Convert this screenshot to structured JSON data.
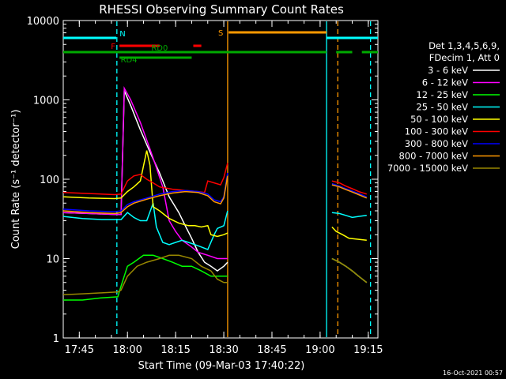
{
  "chart_data": {
    "type": "line",
    "title": "RHESSI Observing Summary Count Rates",
    "xlabel": "Start Time (09-Mar-03 17:40:22)",
    "ylabel": "Count Rate (s⁻¹ detector⁻¹)",
    "yscale": "log",
    "ylim": [
      1,
      10000
    ],
    "xlim_minutes": [
      0,
      98
    ],
    "x_tick_labels": [
      "17:45",
      "18:00",
      "18:15",
      "18:30",
      "18:45",
      "19:00",
      "19:15"
    ],
    "x_tick_minutes": [
      5,
      20,
      35,
      50,
      65,
      80,
      95
    ],
    "y_tick_labels": [
      "1",
      "10",
      "100",
      "1000",
      "10000"
    ],
    "y_tick_values": [
      1,
      10,
      100,
      1000,
      10000
    ],
    "legend_header": [
      "Det 1,3,4,5,6,9,",
      "FDecim 1, Att 0"
    ],
    "footer_date": "16-Oct-2021 00:57",
    "gaps_minutes": [
      [
        51.2,
        83.7
      ],
      [
        94.5,
        94.9
      ]
    ],
    "series": [
      {
        "name": "3 - 6 keV",
        "color": "#ffffff",
        "points": [
          [
            0,
            38
          ],
          [
            8,
            37
          ],
          [
            16,
            36
          ],
          [
            18,
            36
          ],
          [
            19,
            1300
          ],
          [
            21,
            850
          ],
          [
            24,
            420
          ],
          [
            27,
            220
          ],
          [
            30,
            120
          ],
          [
            33,
            60
          ],
          [
            36,
            38
          ],
          [
            38,
            26
          ],
          [
            40,
            18
          ],
          [
            42,
            12
          ],
          [
            44,
            9
          ],
          [
            46,
            8
          ],
          [
            48,
            7
          ],
          [
            50,
            8
          ],
          [
            51.2,
            9
          ],
          [
            83.7,
            10
          ],
          [
            86,
            9
          ],
          [
            88,
            8
          ],
          [
            90,
            7
          ],
          [
            92,
            6
          ],
          [
            94.5,
            5
          ]
        ]
      },
      {
        "name": "6 - 12 keV",
        "color": "#ff00ff",
        "points": [
          [
            0,
            38
          ],
          [
            8,
            37
          ],
          [
            16,
            36
          ],
          [
            18,
            36
          ],
          [
            19,
            1400
          ],
          [
            21,
            1000
          ],
          [
            24,
            520
          ],
          [
            27,
            240
          ],
          [
            29,
            140
          ],
          [
            31,
            80
          ],
          [
            33,
            30
          ],
          [
            35,
            22
          ],
          [
            37,
            17
          ],
          [
            40,
            14
          ],
          [
            42,
            12
          ],
          [
            45,
            11
          ],
          [
            48,
            10
          ],
          [
            50,
            10
          ],
          [
            51.2,
            10
          ],
          [
            83.7,
            10
          ],
          [
            86,
            9
          ],
          [
            88,
            8
          ],
          [
            90,
            7
          ],
          [
            92,
            6
          ],
          [
            94.5,
            5
          ]
        ]
      },
      {
        "name": "12 - 25 keV",
        "color": "#00ff00",
        "points": [
          [
            0,
            3
          ],
          [
            6,
            3
          ],
          [
            12,
            3.2
          ],
          [
            17,
            3.3
          ],
          [
            18,
            4.5
          ],
          [
            20,
            8
          ],
          [
            22,
            9
          ],
          [
            25,
            11
          ],
          [
            28,
            11
          ],
          [
            31,
            10
          ],
          [
            34,
            9
          ],
          [
            37,
            8
          ],
          [
            40,
            8
          ],
          [
            43,
            7
          ],
          [
            46,
            6
          ],
          [
            48,
            6
          ],
          [
            51.2,
            6
          ],
          [
            83.7,
            10
          ],
          [
            86,
            9
          ],
          [
            88,
            8
          ],
          [
            90,
            7
          ],
          [
            92,
            6
          ],
          [
            94.5,
            5
          ]
        ]
      },
      {
        "name": "25 - 50 keV",
        "color": "#00ffff",
        "points": [
          [
            0,
            34
          ],
          [
            6,
            32
          ],
          [
            12,
            31
          ],
          [
            18,
            31
          ],
          [
            20,
            38
          ],
          [
            22,
            33
          ],
          [
            24,
            30
          ],
          [
            26,
            30
          ],
          [
            28,
            50
          ],
          [
            29,
            25
          ],
          [
            31,
            16
          ],
          [
            33,
            15
          ],
          [
            35,
            16
          ],
          [
            37,
            17
          ],
          [
            39,
            16
          ],
          [
            41,
            15
          ],
          [
            43,
            14
          ],
          [
            45,
            13
          ],
          [
            47,
            20
          ],
          [
            48,
            24
          ],
          [
            50,
            26
          ],
          [
            51.2,
            40
          ],
          [
            83.7,
            38
          ],
          [
            86,
            37
          ],
          [
            88,
            35
          ],
          [
            90,
            33
          ],
          [
            92,
            34
          ],
          [
            94.5,
            35
          ]
        ]
      },
      {
        "name": "50 - 100 keV",
        "color": "#ffff00",
        "points": [
          [
            0,
            60
          ],
          [
            8,
            58
          ],
          [
            16,
            57
          ],
          [
            18,
            58
          ],
          [
            20,
            70
          ],
          [
            22,
            80
          ],
          [
            24,
            95
          ],
          [
            26,
            230
          ],
          [
            27,
            150
          ],
          [
            28,
            45
          ],
          [
            30,
            40
          ],
          [
            33,
            32
          ],
          [
            36,
            28
          ],
          [
            39,
            26
          ],
          [
            41,
            26
          ],
          [
            43,
            25
          ],
          [
            45,
            26
          ],
          [
            46,
            20
          ],
          [
            48,
            19
          ],
          [
            50,
            20
          ],
          [
            51.2,
            21
          ],
          [
            83.7,
            25
          ],
          [
            85,
            22
          ],
          [
            87,
            20
          ],
          [
            89,
            18
          ],
          [
            94.5,
            17
          ]
        ]
      },
      {
        "name": "100 - 300 keV",
        "color": "#ff0000",
        "points": [
          [
            0,
            68
          ],
          [
            8,
            66
          ],
          [
            16,
            64
          ],
          [
            18,
            65
          ],
          [
            20,
            95
          ],
          [
            22,
            110
          ],
          [
            24,
            115
          ],
          [
            26,
            100
          ],
          [
            28,
            90
          ],
          [
            30,
            80
          ],
          [
            34,
            75
          ],
          [
            38,
            72
          ],
          [
            42,
            70
          ],
          [
            44,
            68
          ],
          [
            45,
            95
          ],
          [
            47,
            90
          ],
          [
            49,
            85
          ],
          [
            50,
            105
          ],
          [
            51.2,
            160
          ],
          [
            83.7,
            95
          ],
          [
            86,
            90
          ],
          [
            88,
            82
          ],
          [
            90,
            76
          ],
          [
            92,
            70
          ],
          [
            94.5,
            65
          ]
        ]
      },
      {
        "name": "300 - 800 keV",
        "color": "#0000ff",
        "points": [
          [
            0,
            42
          ],
          [
            8,
            40
          ],
          [
            16,
            39
          ],
          [
            18,
            40
          ],
          [
            20,
            48
          ],
          [
            22,
            52
          ],
          [
            26,
            58
          ],
          [
            30,
            65
          ],
          [
            34,
            70
          ],
          [
            38,
            72
          ],
          [
            42,
            70
          ],
          [
            45,
            65
          ],
          [
            47,
            55
          ],
          [
            49,
            52
          ],
          [
            50,
            60
          ],
          [
            51.2,
            120
          ],
          [
            83.7,
            88
          ],
          [
            86,
            82
          ],
          [
            88,
            76
          ],
          [
            90,
            71
          ],
          [
            92,
            66
          ],
          [
            94.5,
            60
          ]
        ]
      },
      {
        "name": "800 - 7000 keV",
        "color": "#ff9900",
        "points": [
          [
            0,
            40
          ],
          [
            8,
            38
          ],
          [
            16,
            37
          ],
          [
            18,
            38
          ],
          [
            20,
            45
          ],
          [
            22,
            50
          ],
          [
            26,
            56
          ],
          [
            30,
            62
          ],
          [
            34,
            67
          ],
          [
            38,
            70
          ],
          [
            42,
            68
          ],
          [
            45,
            62
          ],
          [
            47,
            52
          ],
          [
            49,
            49
          ],
          [
            50,
            58
          ],
          [
            51.2,
            110
          ],
          [
            83.7,
            85
          ],
          [
            86,
            80
          ],
          [
            88,
            74
          ],
          [
            90,
            69
          ],
          [
            92,
            64
          ],
          [
            94.5,
            58
          ]
        ]
      },
      {
        "name": "7000 - 15000 keV",
        "color": "#998800",
        "points": [
          [
            0,
            3.5
          ],
          [
            6,
            3.6
          ],
          [
            12,
            3.7
          ],
          [
            17,
            3.8
          ],
          [
            18,
            4
          ],
          [
            20,
            6
          ],
          [
            23,
            8
          ],
          [
            26,
            9
          ],
          [
            30,
            10
          ],
          [
            33,
            11
          ],
          [
            36,
            11
          ],
          [
            40,
            10
          ],
          [
            43,
            8
          ],
          [
            46,
            7
          ],
          [
            48,
            5.5
          ],
          [
            50,
            5
          ],
          [
            51.2,
            5
          ],
          [
            83.7,
            10
          ],
          [
            86,
            9
          ],
          [
            88,
            8
          ],
          [
            90,
            7
          ],
          [
            92,
            6
          ],
          [
            94.5,
            5
          ]
        ]
      }
    ],
    "status_flags": [
      {
        "label": "N",
        "color": "#00ffff",
        "level": "top",
        "segments": [
          [
            0,
            16.5
          ],
          [
            82,
            98
          ]
        ]
      },
      {
        "label": "S",
        "color": "#ff9900",
        "level": "top-high",
        "segments": [
          [
            51.5,
            82
          ]
        ]
      },
      {
        "label": "F",
        "color": "#ff0000",
        "level": "mid-high",
        "segments": [
          [
            17.5,
            30
          ],
          [
            40.5,
            43
          ]
        ]
      },
      {
        "label": "RD0",
        "color": "#00aa00",
        "level": "mid-low",
        "segments": [
          [
            0,
            82
          ],
          [
            85,
            90
          ],
          [
            93,
            98
          ]
        ]
      },
      {
        "label": "RD4",
        "color": "#00aa00",
        "level": "low",
        "segments": [
          [
            17.5,
            40
          ]
        ]
      }
    ],
    "vertical_markers": [
      {
        "x": 16.7,
        "color": "#00ffff",
        "dashed": true
      },
      {
        "x": 51.2,
        "color": "#ff9900",
        "dashed": false
      },
      {
        "x": 82,
        "color": "#00ffff",
        "dashed": false
      },
      {
        "x": 85.5,
        "color": "#ff9900",
        "dashed": true
      },
      {
        "x": 95.7,
        "color": "#00ffff",
        "dashed": true
      }
    ]
  }
}
